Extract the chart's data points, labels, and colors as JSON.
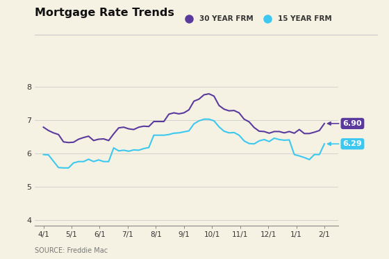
{
  "title": "Mortgage Rate Trends",
  "source": "SOURCE: Freddie Mac",
  "background_color": "#f5f2e3",
  "legend_30yr_label": "30 YEAR FRM",
  "legend_15yr_label": "15 YEAR FRM",
  "color_30yr": "#5b3a9e",
  "color_15yr": "#3cc8f0",
  "label_30yr_value": "6.90",
  "label_15yr_value": "6.29",
  "label_30yr_bg": "#5b3a9e",
  "label_15yr_bg": "#3cc8f0",
  "yticks": [
    4,
    5,
    6,
    7,
    8
  ],
  "ylim": [
    3.85,
    8.35
  ],
  "xtick_labels": [
    "4/1",
    "5/1",
    "6/1",
    "7/1",
    "8/1",
    "9/1",
    "10/1",
    "11/1",
    "12/1",
    "1/1",
    "2/1"
  ],
  "rate_30yr": [
    6.79,
    6.69,
    6.62,
    6.57,
    6.35,
    6.33,
    6.34,
    6.43,
    6.48,
    6.52,
    6.39,
    6.43,
    6.44,
    6.39,
    6.59,
    6.77,
    6.79,
    6.74,
    6.72,
    6.79,
    6.82,
    6.81,
    6.96,
    6.96,
    6.96,
    7.18,
    7.22,
    7.19,
    7.22,
    7.31,
    7.57,
    7.63,
    7.76,
    7.79,
    7.72,
    7.44,
    7.33,
    7.28,
    7.29,
    7.22,
    7.03,
    6.95,
    6.78,
    6.67,
    6.66,
    6.61,
    6.66,
    6.66,
    6.62,
    6.66,
    6.61,
    6.72,
    6.6,
    6.6,
    6.64,
    6.69,
    6.9
  ],
  "rate_15yr": [
    5.97,
    5.96,
    5.77,
    5.58,
    5.57,
    5.57,
    5.72,
    5.76,
    5.76,
    5.83,
    5.76,
    5.81,
    5.76,
    5.76,
    6.17,
    6.08,
    6.1,
    6.07,
    6.11,
    6.1,
    6.15,
    6.18,
    6.55,
    6.55,
    6.55,
    6.57,
    6.61,
    6.62,
    6.65,
    6.68,
    6.89,
    6.98,
    7.03,
    7.03,
    6.98,
    6.8,
    6.67,
    6.62,
    6.63,
    6.55,
    6.38,
    6.3,
    6.29,
    6.38,
    6.42,
    6.36,
    6.46,
    6.42,
    6.4,
    6.41,
    5.97,
    5.93,
    5.88,
    5.82,
    5.97,
    5.97,
    6.29
  ]
}
